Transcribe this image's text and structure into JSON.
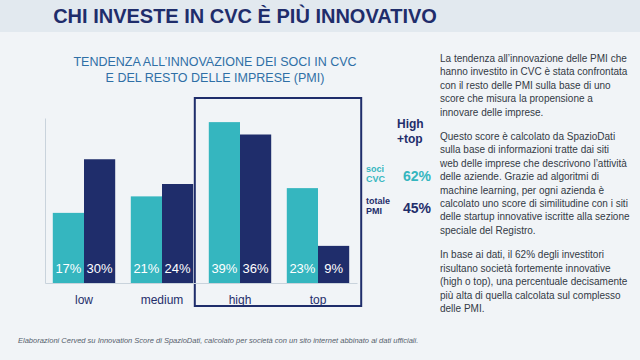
{
  "header": {
    "title": "CHI INVESTE IN CVC È PIÙ INNOVATIVO"
  },
  "chart_data": {
    "type": "bar",
    "title": "TENDENZA ALL’INNOVAZIONE DEI SOCI IN CVC E DEL RESTO DELLE IMPRESE (PMI)",
    "categories": [
      "low",
      "medium",
      "high",
      "top"
    ],
    "series": [
      {
        "name": "soci CVC",
        "color": "#35b6bf",
        "values": [
          17,
          21,
          39,
          23
        ],
        "value_labels": [
          "17%",
          "21%",
          "39%",
          "23%"
        ]
      },
      {
        "name": "totale PMI",
        "color": "#1f2d6b",
        "values": [
          30,
          24,
          36,
          9
        ],
        "value_labels": [
          "30%",
          "24%",
          "36%",
          "9%"
        ]
      }
    ],
    "ylim": [
      0,
      40
    ],
    "data_labels": true,
    "tick_labels": "x",
    "annotations": [
      {
        "text": "High +top",
        "values": [
          62,
          45
        ],
        "value_labels": [
          "62%",
          "45%"
        ]
      }
    ]
  },
  "text": {
    "paragraphs": [
      "La tendenza all’innovazione delle PMI che hanno investito in CVC è stata confrontata con il resto delle PMI sulla base di uno score che misura la propensione a innovare delle imprese.",
      "Questo score è calcolato da SpazioDati sulla base di informazioni tratte dai siti web delle imprese che descrivono l’attività delle aziende. Grazie ad algoritmi di machine learning, per ogni azienda è calcolato uno score di similitudine con i siti delle startup innovative iscritte alla sezione speciale del Registro.",
      "In base ai dati, il 62% degli investitori risultano società fortemente innovative (high o top), una percentuale decisamente più alta di quella calcolata sul complesso delle PMI."
    ]
  },
  "footnote": "Elaborazioni Cerved su Innovation Score di SpazioDati, calcolato per società con un sito internet abbinato ai dati ufficiali."
}
